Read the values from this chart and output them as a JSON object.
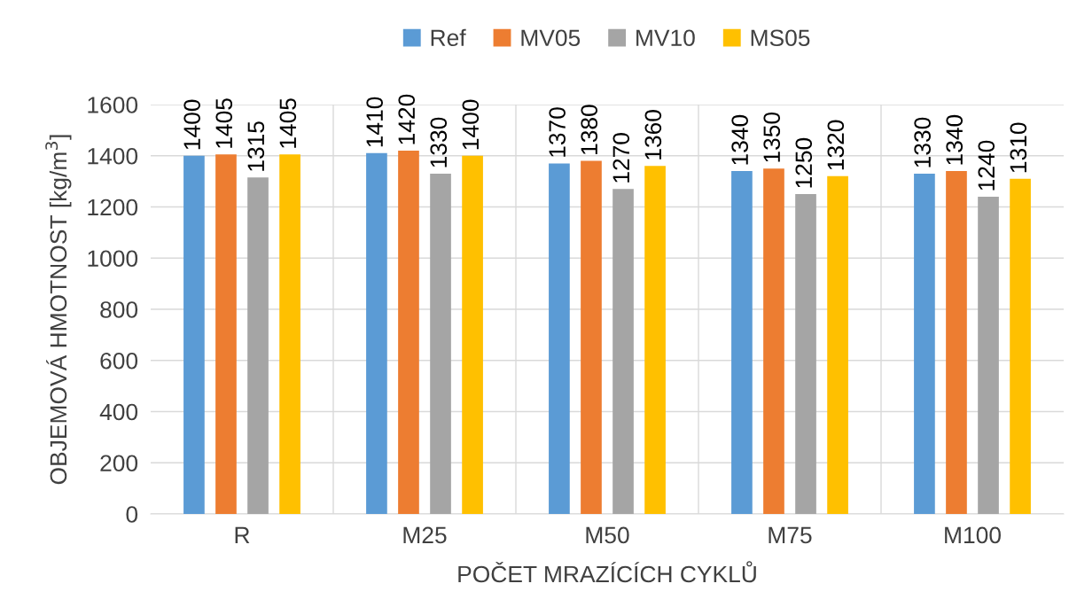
{
  "chart_data": {
    "type": "bar",
    "xlabel": "POČET MRAZÍCÍCH CYKLŮ",
    "ylabel": "OBJEMOVÁ HMOTNOST [kg/m$^{3}$]",
    "categories": [
      "R",
      "M25",
      "M50",
      "M75",
      "M100"
    ],
    "series": [
      {
        "name": "Ref",
        "color": "#5b9bd5",
        "values": [
          1400,
          1410,
          1370,
          1340,
          1330
        ]
      },
      {
        "name": "MV05",
        "color": "#ed7d31",
        "values": [
          1405,
          1420,
          1380,
          1350,
          1340
        ]
      },
      {
        "name": "MV10",
        "color": "#a5a5a5",
        "values": [
          1315,
          1330,
          1270,
          1250,
          1240
        ]
      },
      {
        "name": "MS05",
        "color": "#ffc000",
        "values": [
          1405,
          1400,
          1360,
          1320,
          1310
        ]
      }
    ],
    "ylim": [
      0,
      1600
    ],
    "yticks": [
      0,
      200,
      400,
      600,
      800,
      1000,
      1200,
      1400,
      1600
    ],
    "grid": true,
    "legend": "top",
    "data_labels": true
  }
}
